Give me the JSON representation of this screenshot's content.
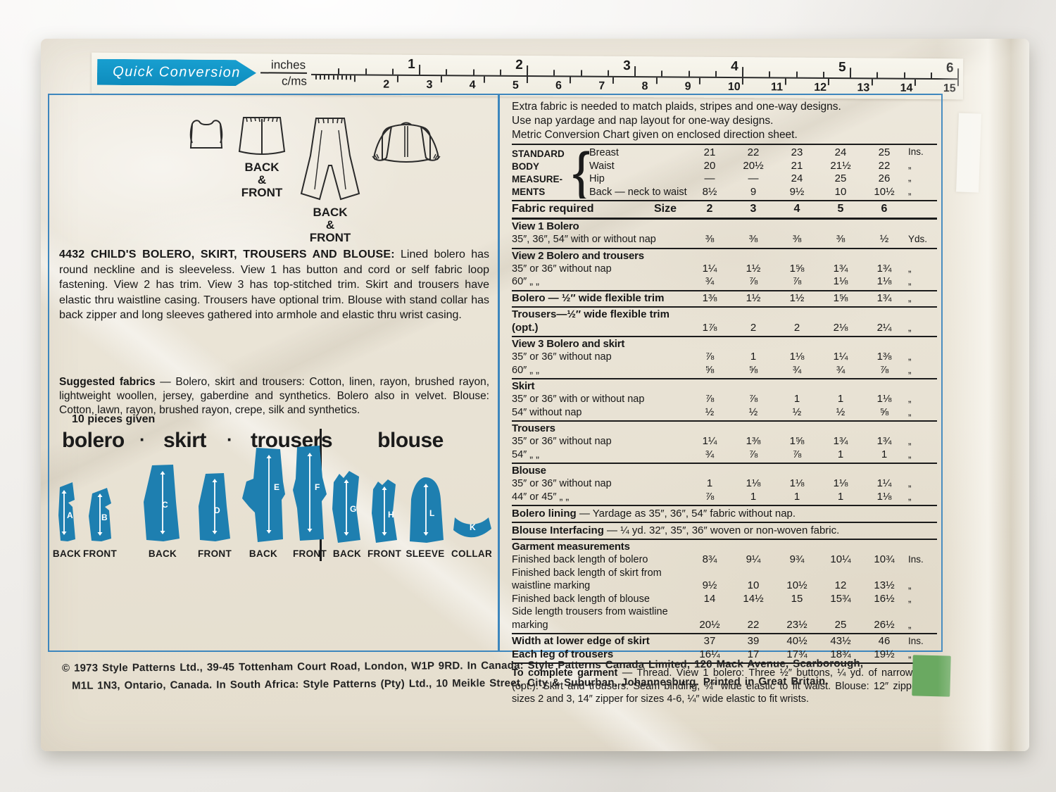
{
  "colors": {
    "accent_blue": "#3d86bd",
    "banner_blue": "#189fd0",
    "piece_blue": "#1e7fb0",
    "paper": "#e9e3d5",
    "sticker_green": "#6aa961"
  },
  "ruler": {
    "title": "Quick Conversion",
    "unit_top": "inches",
    "unit_bottom": "c/ms",
    "inch_numbers": [
      "1",
      "2",
      "3",
      "4",
      "5",
      "6"
    ],
    "cm_numbers": [
      "2",
      "3",
      "4",
      "5",
      "6",
      "7",
      "8",
      "9",
      "10",
      "11",
      "12",
      "13",
      "14",
      "15"
    ]
  },
  "illustrations": {
    "skirt_caption": "BACK\n&\nFRONT",
    "trousers_caption": "BACK\n&\nFRONT"
  },
  "description": {
    "lead": "4432   CHILD'S BOLERO, SKIRT, TROUSERS AND BLOUSE:",
    "body": " Lined bolero has round neckline and is sleeveless. View 1 has button and cord or self fabric loop fastening. View 2 has trim. View 3 has top-stitched trim. Skirt and trousers have elastic thru waistline casing. Trousers have optional trim. Blouse with stand collar has back zipper and long sleeves gathered into armhole and elastic thru wrist casing.",
    "fabrics_lead": "Suggested fabrics",
    "fabrics_body": " — Bolero, skirt and trousers: Cotton, linen, rayon, brushed rayon, lightweight woollen, jersey, gaberdine and synthetics. Bolero also in velvet. Blouse: Cotton, lawn, rayon, brushed rayon, crepe, silk and synthetics."
  },
  "pieces_panel": {
    "note": "10 pieces given",
    "dot": "·",
    "group_labels": [
      "bolero",
      "skirt",
      "trousers",
      "blouse"
    ],
    "pieces": [
      {
        "letter": "A",
        "caption": "BACK"
      },
      {
        "letter": "B",
        "caption": "FRONT"
      },
      {
        "letter": "C",
        "caption": "BACK"
      },
      {
        "letter": "D",
        "caption": "FRONT"
      },
      {
        "letter": "E",
        "caption": "BACK"
      },
      {
        "letter": "F",
        "caption": "FRONT"
      },
      {
        "letter": "G",
        "caption": "BACK"
      },
      {
        "letter": "H",
        "caption": "FRONT"
      },
      {
        "letter": "L",
        "caption": "SLEEVE"
      },
      {
        "letter": "K",
        "caption": "COLLAR"
      }
    ]
  },
  "right": {
    "notes": [
      "Extra fabric is needed to match plaids, stripes and one-way designs.",
      "Use nap yardage and nap layout for one-way designs.",
      "Metric Conversion Chart given on enclosed direction sheet."
    ],
    "size_chart": {
      "label_lines": [
        "STANDARD",
        "BODY",
        "MEASURE-",
        "MENTS"
      ],
      "brace": "{",
      "rows": [
        {
          "label": "Breast",
          "values": [
            "21",
            "22",
            "23",
            "24",
            "25"
          ],
          "unit": "Ins."
        },
        {
          "label": "Waist",
          "values": [
            "20",
            "20½",
            "21",
            "21½",
            "22"
          ],
          "unit": "„"
        },
        {
          "label": "Hip",
          "values": [
            "—",
            "—",
            "24",
            "25",
            "26"
          ],
          "unit": "„"
        },
        {
          "label": "Back — neck to waist",
          "values": [
            "8½",
            "9",
            "9½",
            "10",
            "10½"
          ],
          "unit": "„"
        }
      ]
    },
    "size_row": {
      "label": "Fabric required",
      "size_label": "Size",
      "sizes": [
        "2",
        "3",
        "4",
        "5",
        "6"
      ]
    },
    "fabric_blocks": [
      {
        "type": "section",
        "title": "View 1   Bolero",
        "rows": [
          {
            "label": "35″, 36″, 54″ with or without nap",
            "values": [
              "⅜",
              "⅜",
              "⅜",
              "⅜",
              "½"
            ],
            "unit": "Yds."
          }
        ]
      },
      {
        "type": "section",
        "title": "View 2   Bolero and trousers",
        "rows": [
          {
            "label": "35″ or 36″ without nap",
            "values": [
              "1¼",
              "1½",
              "1⅝",
              "1¾",
              "1¾"
            ],
            "unit": "„"
          },
          {
            "label": "60″             „          „",
            "values": [
              "¾",
              "⅞",
              "⅞",
              "1⅛",
              "1⅛"
            ],
            "unit": "„"
          }
        ]
      },
      {
        "type": "inline",
        "label": "Bolero — ½″ wide flexible trim",
        "values": [
          "1⅜",
          "1½",
          "1½",
          "1⅝",
          "1¾"
        ],
        "unit": "„"
      },
      {
        "type": "inline",
        "label": "Trousers—½″ wide flexible trim (opt.)",
        "values": [
          "1⅞",
          "2",
          "2",
          "2⅛",
          "2¼"
        ],
        "unit": "„"
      },
      {
        "type": "section",
        "title": "View 3   Bolero and skirt",
        "rows": [
          {
            "label": "35″ or 36″ without nap",
            "values": [
              "⅞",
              "1",
              "1⅛",
              "1¼",
              "1⅜"
            ],
            "unit": "„"
          },
          {
            "label": "60″             „          „",
            "values": [
              "⅝",
              "⅝",
              "¾",
              "¾",
              "⅞"
            ],
            "unit": "„"
          }
        ]
      },
      {
        "type": "section",
        "title": "Skirt",
        "rows": [
          {
            "label": "35″ or 36″ with or without nap",
            "values": [
              "⅞",
              "⅞",
              "1",
              "1",
              "1⅛"
            ],
            "unit": "„"
          },
          {
            "label": "54″ without nap",
            "values": [
              "½",
              "½",
              "½",
              "½",
              "⅝"
            ],
            "unit": "„"
          }
        ]
      },
      {
        "type": "section",
        "title": "Trousers",
        "rows": [
          {
            "label": "35″ or 36″ without nap",
            "values": [
              "1¼",
              "1⅜",
              "1⅝",
              "1¾",
              "1¾"
            ],
            "unit": "„"
          },
          {
            "label": "54″             „          „",
            "values": [
              "¾",
              "⅞",
              "⅞",
              "1",
              "1"
            ],
            "unit": "„"
          }
        ]
      },
      {
        "type": "section",
        "title": "Blouse",
        "rows": [
          {
            "label": "35″ or 36″ without nap",
            "values": [
              "1",
              "1⅛",
              "1⅛",
              "1⅛",
              "1¼"
            ],
            "unit": "„"
          },
          {
            "label": "44″ or 45″    „          „",
            "values": [
              "⅞",
              "1",
              "1",
              "1",
              "1⅛"
            ],
            "unit": "„"
          }
        ]
      },
      {
        "type": "text",
        "bold": "Bolero lining",
        "rest": " — Yardage as 35″, 36″, 54″ fabric without nap."
      },
      {
        "type": "text",
        "bold": "Blouse Interfacing",
        "rest": " — ¼ yd. 32″, 35″, 36″ woven or non-woven fabric."
      },
      {
        "type": "section",
        "title": "Garment measurements",
        "rows": [
          {
            "label": "Finished back length of bolero",
            "values": [
              "8¾",
              "9¼",
              "9¾",
              "10¼",
              "10¾"
            ],
            "unit": "Ins."
          },
          {
            "label": "Finished back length of skirt from waistline marking",
            "values": [
              "9½",
              "10",
              "10½",
              "12",
              "13½"
            ],
            "unit": "„"
          },
          {
            "label": "Finished back length of blouse",
            "values": [
              "14",
              "14½",
              "15",
              "15¾",
              "16½"
            ],
            "unit": "„"
          },
          {
            "label": "Side length trousers from waistline marking",
            "values": [
              "20½",
              "22",
              "23½",
              "25",
              "26½"
            ],
            "unit": "„"
          }
        ]
      },
      {
        "type": "section",
        "title": "",
        "rows": [
          {
            "label": "Width at lower edge of skirt",
            "values": [
              "37",
              "39",
              "40½",
              "43½",
              "46"
            ],
            "unit": "Ins.",
            "bold": true
          },
          {
            "label": "Each leg of trousers",
            "values": [
              "16¼",
              "17",
              "17¾",
              "18¾",
              "19½"
            ],
            "unit": "„",
            "bold": true
          }
        ]
      },
      {
        "type": "para",
        "bold": "To complete garment",
        "rest": " — Thread. View 1 bolero: Three ½″ buttons, ¼ yd. of narrow cord (opt.). Skirt and trousers: Seam binding, ¾″ wide elastic to fit waist. Blouse: 12″ zipper for sizes 2 and 3, 14″ zipper for sizes 4-6, ¼″ wide elastic to fit wrists."
      }
    ]
  },
  "footer": {
    "line1": "©  1973  Style  Patterns  Ltd.,  39-45  Tottenham  Court  Road,  London,  W1P  9RD.  In  Canada:  Style  Patterns  Canada  Limited,  120  Mack  Avenue,  Scarborough,",
    "line2": "M1L  1N3,  Ontario,  Canada.  In  South  Africa:  Style  Patterns  (Pty)  Ltd.,  10  Meikle  Street,  City  &  Suburban,  Johannesburg.  Printed  in  Great  Britain."
  }
}
